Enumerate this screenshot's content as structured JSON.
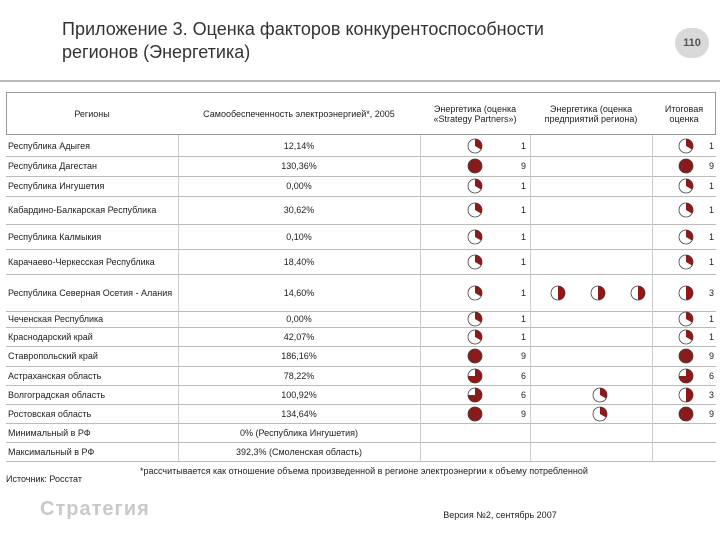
{
  "header": {
    "title": "Приложение 3. Оценка факторов конкурентоспособности регионов (Энергетика)",
    "page_number": "110"
  },
  "table": {
    "columns": [
      "Регионы",
      "Самообеспеченность электроэнергией*, 2005",
      "Энергетика (оценка «Strategy Partners»)",
      "Энергетика (оценка предприятий региона)",
      "Итоговая оценка"
    ],
    "rows": [
      {
        "region": "Республика Адыгея",
        "self_sufficiency": "12,14%",
        "sp_score": 1,
        "enterprise_scores": [],
        "final_score": 1
      },
      {
        "region": "Республика Дагестан",
        "self_sufficiency": "130,36%",
        "sp_score": 9,
        "enterprise_scores": [],
        "final_score": 9
      },
      {
        "region": "Республика Ингушетия",
        "self_sufficiency": "0,00%",
        "sp_score": 1,
        "enterprise_scores": [],
        "final_score": 1
      },
      {
        "region": "Кабардино-Балкарская Республика",
        "self_sufficiency": "30,62%",
        "sp_score": 1,
        "enterprise_scores": [],
        "final_score": 1
      },
      {
        "region": "Республика Калмыкия",
        "self_sufficiency": "0,10%",
        "sp_score": 1,
        "enterprise_scores": [],
        "final_score": 1
      },
      {
        "region": "Карачаево-Черкесская Республика",
        "self_sufficiency": "18,40%",
        "sp_score": 1,
        "enterprise_scores": [],
        "final_score": 1
      },
      {
        "region": "Республика Северная Осетия - Алания",
        "self_sufficiency": "14,60%",
        "sp_score": 1,
        "enterprise_scores": [
          3,
          3,
          3
        ],
        "final_score": 3
      },
      {
        "region": "Чеченская Республика",
        "self_sufficiency": "0,00%",
        "sp_score": 1,
        "enterprise_scores": [],
        "final_score": 1
      },
      {
        "region": "Краснодарский край",
        "self_sufficiency": "42,07%",
        "sp_score": 1,
        "enterprise_scores": [],
        "final_score": 1
      },
      {
        "region": "Ставропольский край",
        "self_sufficiency": "186,16%",
        "sp_score": 9,
        "enterprise_scores": [],
        "final_score": 9
      },
      {
        "region": "Астраханская область",
        "self_sufficiency": "78,22%",
        "sp_score": 6,
        "enterprise_scores": [],
        "final_score": 6
      },
      {
        "region": "Волгоградская область",
        "self_sufficiency": "100,92%",
        "sp_score": 6,
        "enterprise_scores": [
          1
        ],
        "final_score": 3
      },
      {
        "region": "Ростовская область",
        "self_sufficiency": "134,64%",
        "sp_score": 9,
        "enterprise_scores": [
          1
        ],
        "final_score": 9
      }
    ],
    "summary": [
      {
        "label": "Минимальный в РФ",
        "value": "0% (Республика Ингушетия)"
      },
      {
        "label": "Максимальный в РФ",
        "value": "392,3% (Смоленская область)"
      }
    ]
  },
  "footer": {
    "source": "Источник: Росстат",
    "footnote": "*рассчитывается как отношение объема произведенной в регионе электроэнергии к объему потребленной",
    "version": "Версия №2, сентябрь 2007",
    "logo": "Стратегия"
  }
}
